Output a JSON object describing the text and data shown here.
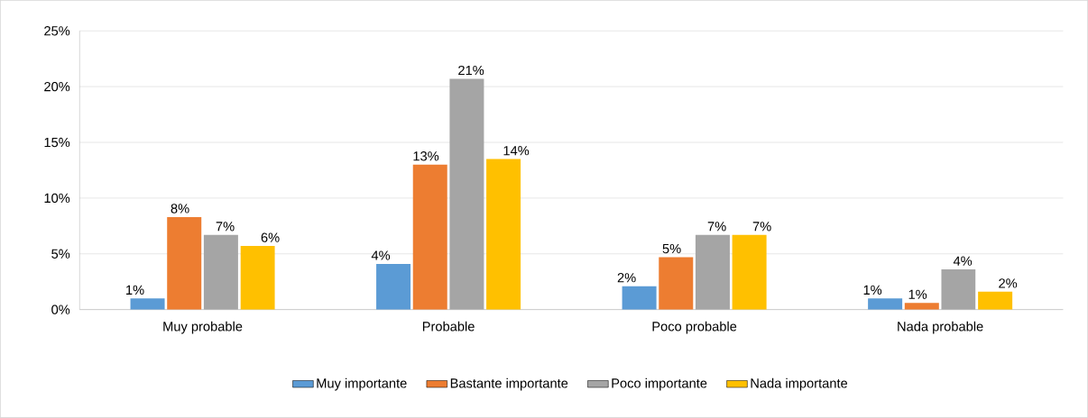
{
  "chart_data": {
    "type": "bar",
    "categories": [
      "Muy probable",
      "Probable",
      "Poco probable",
      "Nada probable"
    ],
    "series": [
      {
        "name": "Muy importante",
        "color": "#5b9bd5",
        "values": [
          1.0,
          4.1,
          2.1,
          1.0
        ],
        "value_labels": [
          "1%",
          "4%",
          "2%",
          "1%"
        ]
      },
      {
        "name": "Bastante importante",
        "color": "#ed7d31",
        "values": [
          8.3,
          13.0,
          4.7,
          0.6
        ],
        "value_labels": [
          "8%",
          "13%",
          "5%",
          "1%"
        ]
      },
      {
        "name": "Poco importante",
        "color": "#a5a5a5",
        "values": [
          6.7,
          20.7,
          6.7,
          3.6
        ],
        "value_labels": [
          "7%",
          "21%",
          "7%",
          "4%"
        ]
      },
      {
        "name": "Nada importante",
        "color": "#ffc000",
        "values": [
          5.7,
          13.5,
          6.7,
          1.6
        ],
        "value_labels": [
          "6%",
          "14%",
          "7%",
          "2%"
        ]
      }
    ],
    "ylim": [
      0,
      25
    ],
    "yticks": [
      {
        "value": 0,
        "label": "0%"
      },
      {
        "value": 5,
        "label": "5%"
      },
      {
        "value": 10,
        "label": "10%"
      },
      {
        "value": 15,
        "label": "15%"
      },
      {
        "value": 20,
        "label": "20%"
      },
      {
        "value": 25,
        "label": "25%"
      }
    ],
    "grid": "y",
    "legend": "bottom"
  }
}
